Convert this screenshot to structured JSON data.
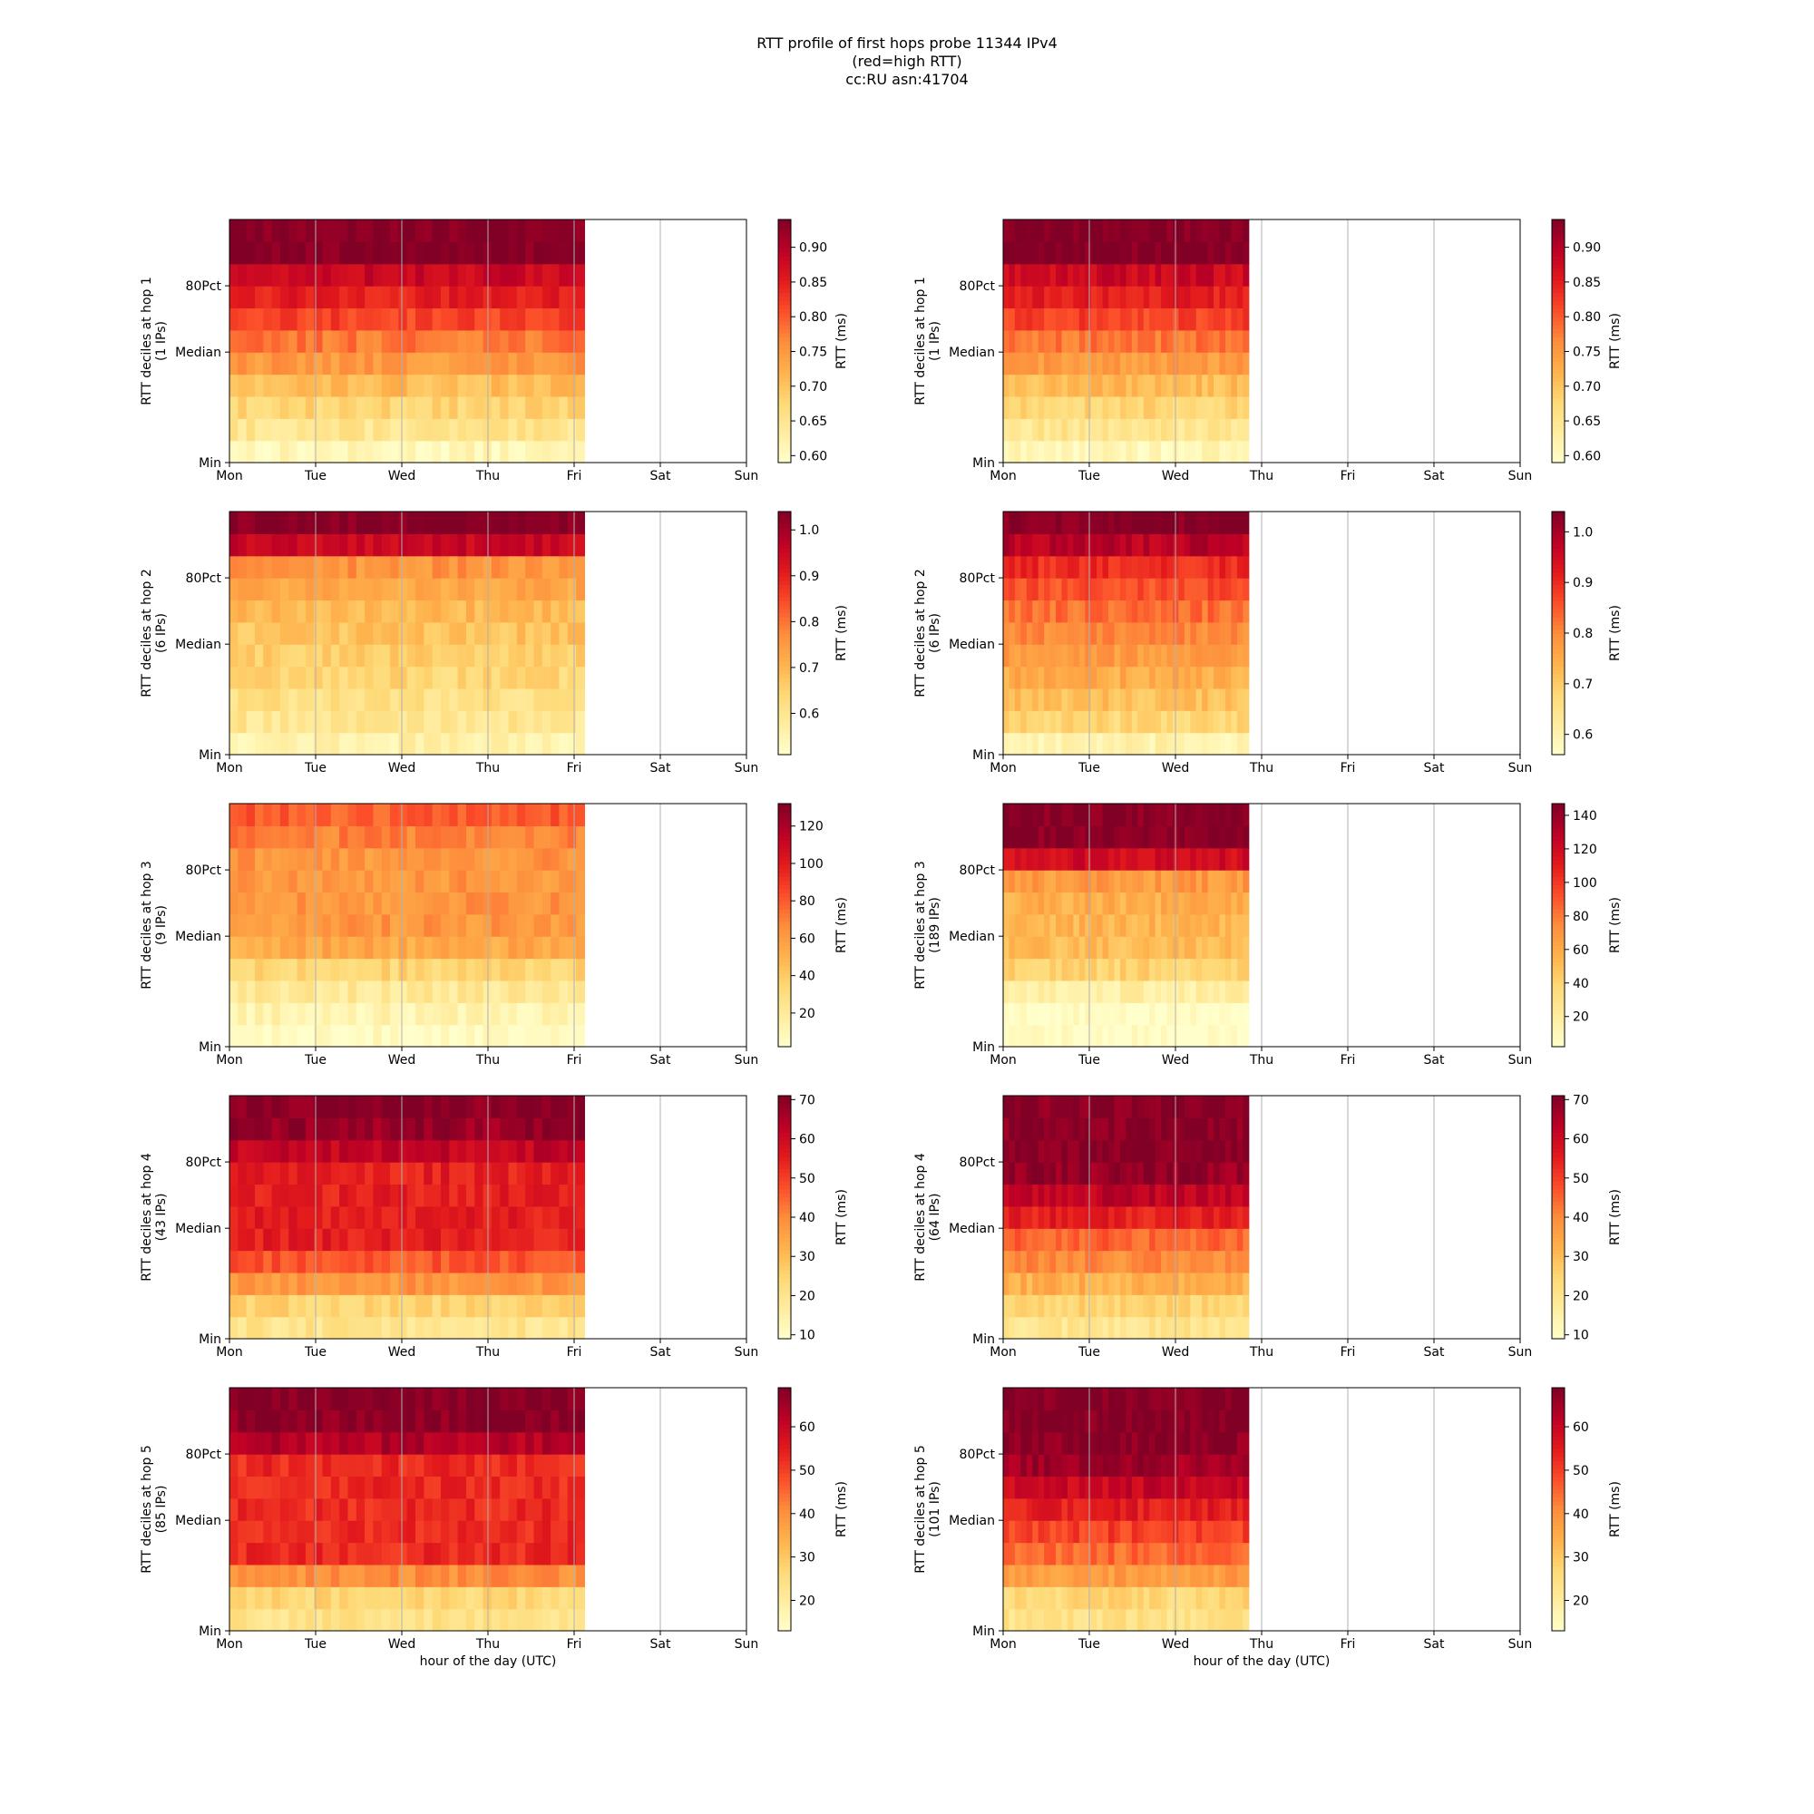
{
  "title_lines": [
    "RTT profile of first hops probe 11344 IPv4",
    "(red=high RTT)",
    "cc:RU asn:41704"
  ],
  "colormap": [
    "#ffffcc",
    "#ffeda0",
    "#fed976",
    "#feb24c",
    "#fd8d3c",
    "#fc4e2a",
    "#e31a1c",
    "#bd0026",
    "#800026"
  ],
  "chart_data": [
    {
      "type": "heatmap",
      "hop": 1,
      "column": "left",
      "ylabel": "RTT deciles at hop 1\n(1 IPs)",
      "ips": 1,
      "xticks": [
        "Mon",
        "Tue",
        "Wed",
        "Thu",
        "Fri",
        "Sat",
        "Sun"
      ],
      "yticks": [
        "Min",
        "Median",
        "80Pct"
      ],
      "data_end_day": 4.12,
      "clabel": "RTT (ms)",
      "cticks": [
        0.6,
        0.65,
        0.7,
        0.75,
        0.8,
        0.85,
        0.9
      ],
      "crange": [
        0.59,
        0.94
      ],
      "decile_values": [
        0.61,
        0.65,
        0.68,
        0.71,
        0.75,
        0.78,
        0.82,
        0.85,
        0.88,
        0.94,
        0.94
      ]
    },
    {
      "type": "heatmap",
      "hop": 1,
      "column": "right",
      "ylabel": "RTT deciles at hop 1\n(1 IPs)",
      "ips": 1,
      "xticks": [
        "Mon",
        "Tue",
        "Wed",
        "Thu",
        "Fri",
        "Sat",
        "Sun"
      ],
      "yticks": [
        "Min",
        "Median",
        "80Pct"
      ],
      "data_end_day": 2.85,
      "clabel": "RTT (ms)",
      "cticks": [
        0.6,
        0.65,
        0.7,
        0.75,
        0.8,
        0.85,
        0.9
      ],
      "crange": [
        0.59,
        0.94
      ],
      "decile_values": [
        0.61,
        0.65,
        0.68,
        0.71,
        0.75,
        0.78,
        0.82,
        0.85,
        0.88,
        0.94,
        0.94
      ]
    },
    {
      "type": "heatmap",
      "hop": 2,
      "column": "left",
      "ylabel": "RTT deciles at hop 2\n(6 IPs)",
      "ips": 6,
      "xticks": [
        "Mon",
        "Tue",
        "Wed",
        "Thu",
        "Fri",
        "Sat",
        "Sun"
      ],
      "yticks": [
        "Min",
        "Median",
        "80Pct"
      ],
      "data_end_day": 4.12,
      "clabel": "RTT (ms)",
      "cticks": [
        0.6,
        0.7,
        0.8,
        0.9,
        1.0
      ],
      "crange": [
        0.51,
        1.04
      ],
      "decile_values": [
        0.56,
        0.6,
        0.62,
        0.64,
        0.66,
        0.68,
        0.7,
        0.73,
        0.76,
        0.95,
        1.04
      ]
    },
    {
      "type": "heatmap",
      "hop": 2,
      "column": "right",
      "ylabel": "RTT deciles at hop 2\n(6 IPs)",
      "ips": 6,
      "xticks": [
        "Mon",
        "Tue",
        "Wed",
        "Thu",
        "Fri",
        "Sat",
        "Sun"
      ],
      "yticks": [
        "Min",
        "Median",
        "80Pct"
      ],
      "data_end_day": 2.85,
      "clabel": "RTT (ms)",
      "cticks": [
        0.6,
        0.7,
        0.8,
        0.9,
        1.0
      ],
      "crange": [
        0.56,
        1.04
      ],
      "decile_values": [
        0.6,
        0.68,
        0.72,
        0.75,
        0.78,
        0.8,
        0.83,
        0.86,
        0.9,
        0.98,
        1.04
      ]
    },
    {
      "type": "heatmap",
      "hop": 3,
      "column": "left",
      "ylabel": "RTT deciles at hop 3\n(9 IPs)",
      "ips": 9,
      "xticks": [
        "Mon",
        "Tue",
        "Wed",
        "Thu",
        "Fri",
        "Sat",
        "Sun"
      ],
      "yticks": [
        "Min",
        "Median",
        "80Pct"
      ],
      "data_end_day": 4.12,
      "clabel": "RTT (ms)",
      "cticks": [
        20,
        40,
        60,
        80,
        100,
        120
      ],
      "crange": [
        2,
        132
      ],
      "decile_values": [
        5,
        12,
        22,
        35,
        55,
        62,
        63,
        63,
        63,
        70,
        80
      ]
    },
    {
      "type": "heatmap",
      "hop": 3,
      "column": "right",
      "ylabel": "RTT deciles at hop 3\n(189 IPs)",
      "ips": 189,
      "xticks": [
        "Mon",
        "Tue",
        "Wed",
        "Thu",
        "Fri",
        "Sat",
        "Sun"
      ],
      "yticks": [
        "Min",
        "Median",
        "80Pct"
      ],
      "data_end_day": 2.85,
      "clabel": "RTT (ms)",
      "cticks": [
        20,
        40,
        60,
        80,
        100,
        120,
        140
      ],
      "crange": [
        2,
        147
      ],
      "decile_values": [
        3,
        4,
        18,
        40,
        52,
        55,
        58,
        68,
        120,
        145,
        145
      ]
    },
    {
      "type": "heatmap",
      "hop": 4,
      "column": "left",
      "ylabel": "RTT deciles at hop 4\n(43 IPs)",
      "ips": 43,
      "xticks": [
        "Mon",
        "Tue",
        "Wed",
        "Thu",
        "Fri",
        "Sat",
        "Sun"
      ],
      "yticks": [
        "Min",
        "Median",
        "80Pct"
      ],
      "data_end_day": 4.12,
      "clabel": "RTT (ms)",
      "cticks": [
        10,
        20,
        30,
        40,
        50,
        60,
        70
      ],
      "crange": [
        9,
        71
      ],
      "decile_values": [
        20,
        25,
        38,
        47,
        55,
        55,
        55,
        55,
        62,
        68,
        70
      ]
    },
    {
      "type": "heatmap",
      "hop": 4,
      "column": "right",
      "ylabel": "RTT deciles at hop 4\n(64 IPs)",
      "ips": 64,
      "xticks": [
        "Mon",
        "Tue",
        "Wed",
        "Thu",
        "Fri",
        "Sat",
        "Sun"
      ],
      "yticks": [
        "Min",
        "Median",
        "80Pct"
      ],
      "data_end_day": 2.85,
      "clabel": "RTT (ms)",
      "cticks": [
        10,
        20,
        30,
        40,
        50,
        60,
        70
      ],
      "crange": [
        9,
        71
      ],
      "decile_values": [
        20,
        25,
        33,
        40,
        45,
        55,
        63,
        68,
        70,
        70,
        70
      ]
    },
    {
      "type": "heatmap",
      "hop": 5,
      "column": "left",
      "ylabel": "RTT deciles at hop 5\n(85 IPs)",
      "ips": 85,
      "xticks": [
        "Mon",
        "Tue",
        "Wed",
        "Thu",
        "Fri",
        "Sat",
        "Sun"
      ],
      "yticks": [
        "Min",
        "Median",
        "80Pct"
      ],
      "data_end_day": 4.12,
      "clabel": "RTT (ms)",
      "cticks": [
        20,
        30,
        40,
        50,
        60
      ],
      "crange": [
        13,
        69
      ],
      "decile_values": [
        24,
        27,
        40,
        53,
        53,
        53,
        53,
        53,
        63,
        68,
        69
      ]
    },
    {
      "type": "heatmap",
      "hop": 5,
      "column": "right",
      "ylabel": "RTT deciles at hop 5\n(101 IPs)",
      "ips": 101,
      "xticks": [
        "Mon",
        "Tue",
        "Wed",
        "Thu",
        "Fri",
        "Sat",
        "Sun"
      ],
      "yticks": [
        "Min",
        "Median",
        "80Pct"
      ],
      "data_end_day": 2.85,
      "clabel": "RTT (ms)",
      "cticks": [
        20,
        30,
        40,
        50,
        60
      ],
      "crange": [
        13,
        69
      ],
      "decile_values": [
        24,
        27,
        38,
        45,
        50,
        55,
        60,
        65,
        68,
        69,
        69
      ]
    }
  ],
  "xlabel": "hour of the day (UTC)"
}
